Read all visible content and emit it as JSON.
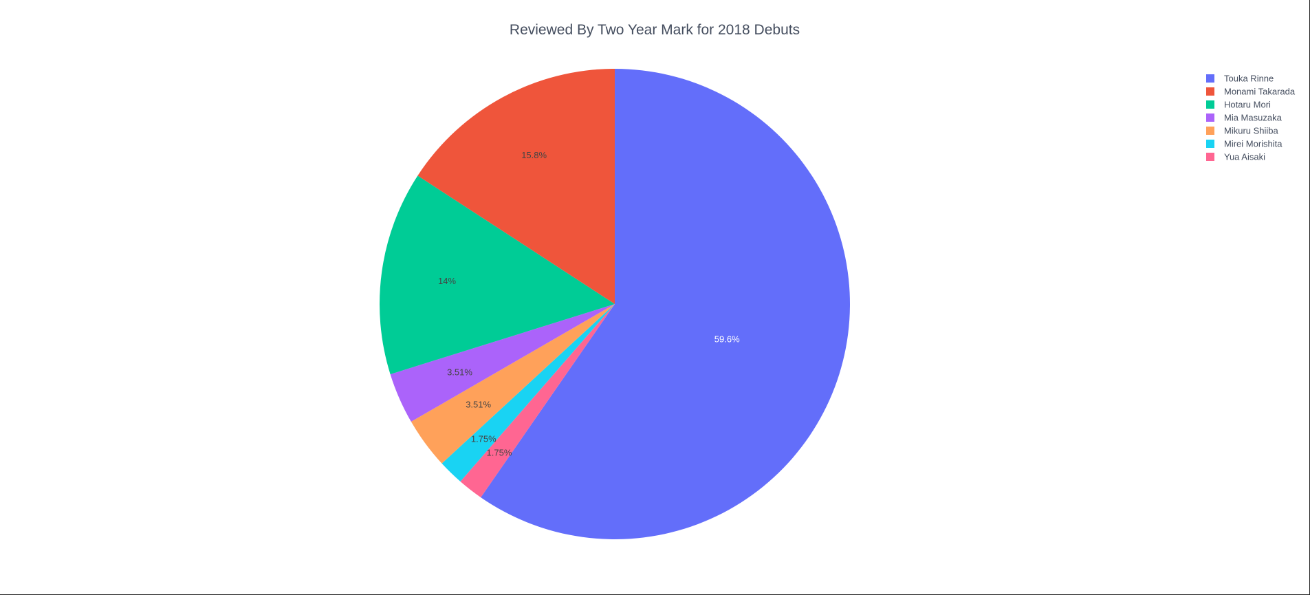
{
  "chart_data": {
    "type": "pie",
    "title": "Reviewed By Two Year Mark for 2018 Debuts",
    "legend_position": "top-right",
    "direction": "clockwise",
    "start_angle": "12 o'clock",
    "slices": [
      {
        "label": "Touka Rinne",
        "percent": 59.6,
        "text": "59.6%",
        "color": "#636efa",
        "text_color": "#ffffff"
      },
      {
        "label": "Yua Aisaki",
        "percent": 1.75,
        "text": "1.75%",
        "color": "#ff6692",
        "text_color": "#444444"
      },
      {
        "label": "Mirei Morishita",
        "percent": 1.75,
        "text": "1.75%",
        "color": "#19d3f3",
        "text_color": "#444444"
      },
      {
        "label": "Mikuru Shiiba",
        "percent": 3.51,
        "text": "3.51%",
        "color": "#ffa15a",
        "text_color": "#444444"
      },
      {
        "label": "Mia Masuzaka",
        "percent": 3.51,
        "text": "3.51%",
        "color": "#ab63fa",
        "text_color": "#444444"
      },
      {
        "label": "Hotaru Mori",
        "percent": 14,
        "text": "14%",
        "color": "#00cc96",
        "text_color": "#444444"
      },
      {
        "label": "Monami Takarada",
        "percent": 15.8,
        "text": "15.8%",
        "color": "#ef553b",
        "text_color": "#444444"
      }
    ],
    "legend": [
      {
        "label": "Touka Rinne",
        "color": "#636efa"
      },
      {
        "label": "Monami Takarada",
        "color": "#ef553b"
      },
      {
        "label": "Hotaru Mori",
        "color": "#00cc96"
      },
      {
        "label": "Mia Masuzaka",
        "color": "#ab63fa"
      },
      {
        "label": "Mikuru Shiiba",
        "color": "#ffa15a"
      },
      {
        "label": "Mirei Morishita",
        "color": "#19d3f3"
      },
      {
        "label": "Yua Aisaki",
        "color": "#ff6692"
      }
    ]
  }
}
